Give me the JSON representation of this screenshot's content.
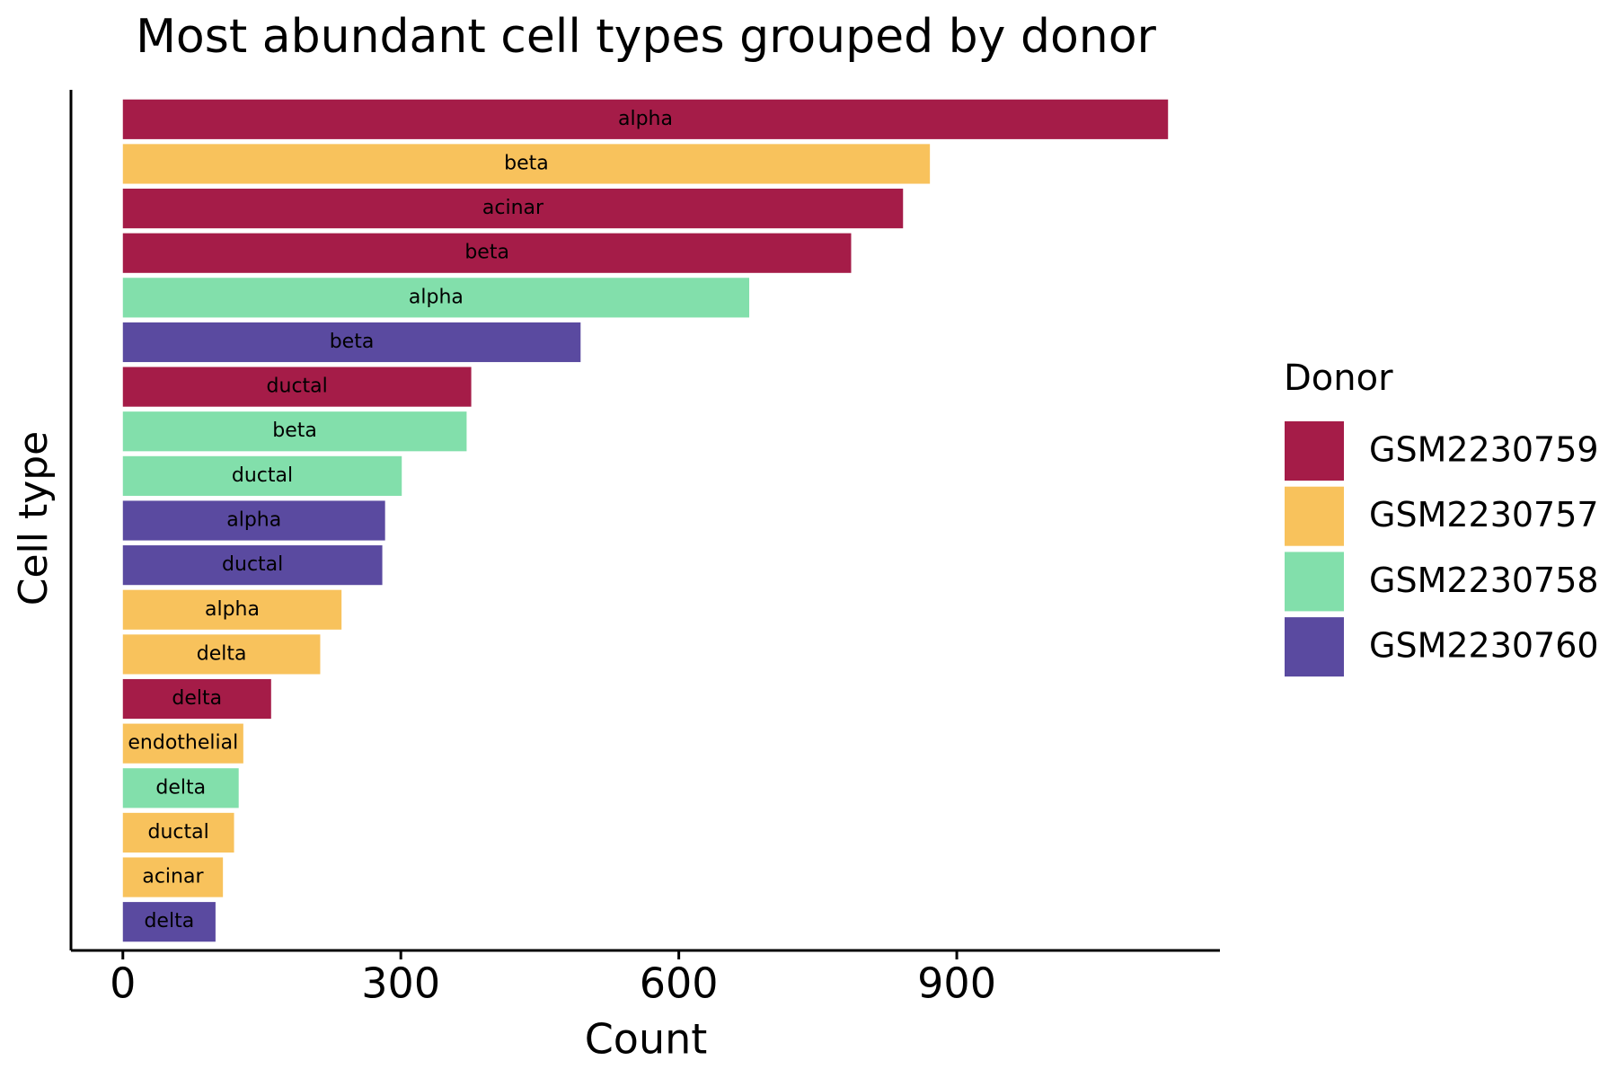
{
  "chart_data": {
    "type": "bar",
    "orientation": "horizontal",
    "title": "Most abundant cell types grouped by donor",
    "xlabel": "Count",
    "ylabel": "Cell type",
    "legend_title": "Donor",
    "categories": [
      "alpha",
      "beta",
      "acinar",
      "beta",
      "alpha",
      "beta",
      "ductal",
      "beta",
      "ductal",
      "alpha",
      "ductal",
      "alpha",
      "delta",
      "delta",
      "endothelial",
      "delta",
      "ductal",
      "acinar",
      "delta"
    ],
    "series": [
      {
        "name": "GSM2230759",
        "color": "#a51c48",
        "values": [
          1128,
          null,
          842,
          786,
          null,
          null,
          376,
          null,
          null,
          null,
          null,
          null,
          null,
          160,
          null,
          null,
          null,
          null,
          null
        ]
      },
      {
        "name": "GSM2230757",
        "color": "#f8c25c",
        "values": [
          null,
          871,
          null,
          null,
          null,
          null,
          null,
          null,
          null,
          null,
          null,
          236,
          213,
          null,
          130,
          null,
          120,
          108,
          null
        ]
      },
      {
        "name": "GSM2230758",
        "color": "#82dfab",
        "values": [
          null,
          null,
          null,
          null,
          676,
          null,
          null,
          371,
          301,
          null,
          null,
          null,
          null,
          null,
          null,
          125,
          null,
          null,
          null
        ]
      },
      {
        "name": "GSM2230760",
        "color": "#5a4aa0",
        "values": [
          null,
          null,
          null,
          null,
          null,
          494,
          null,
          null,
          null,
          283,
          280,
          null,
          null,
          null,
          null,
          null,
          null,
          null,
          100
        ]
      }
    ],
    "xlim": [
      -56,
      1184
    ],
    "xticks": [
      0,
      300,
      600,
      900
    ],
    "legend": "right"
  }
}
